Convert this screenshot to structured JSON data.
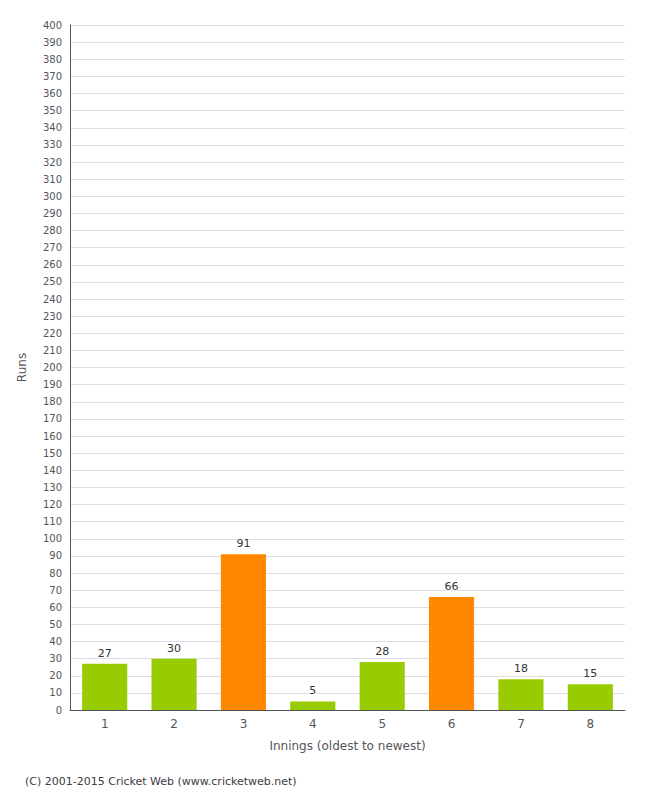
{
  "chart_data": {
    "type": "bar",
    "categories": [
      "1",
      "2",
      "3",
      "4",
      "5",
      "6",
      "7",
      "8"
    ],
    "values": [
      27,
      30,
      91,
      5,
      28,
      66,
      18,
      15
    ],
    "colors": [
      "#99cc00",
      "#99cc00",
      "#ff8800",
      "#99cc00",
      "#99cc00",
      "#ff8800",
      "#99cc00",
      "#99cc00"
    ],
    "xlabel": "Innings (oldest to newest)",
    "ylabel": "Runs",
    "ylim": [
      0,
      400
    ],
    "yticks": [
      0,
      10,
      20,
      30,
      40,
      50,
      60,
      70,
      80,
      90,
      100,
      110,
      120,
      130,
      140,
      150,
      160,
      170,
      180,
      190,
      200,
      210,
      220,
      230,
      240,
      250,
      260,
      270,
      280,
      290,
      300,
      310,
      320,
      330,
      340,
      350,
      360,
      370,
      380,
      390,
      400
    ],
    "grid": true,
    "data_labels": true,
    "footer": "(C) 2001-2015 Cricket Web (www.cricketweb.net)"
  }
}
